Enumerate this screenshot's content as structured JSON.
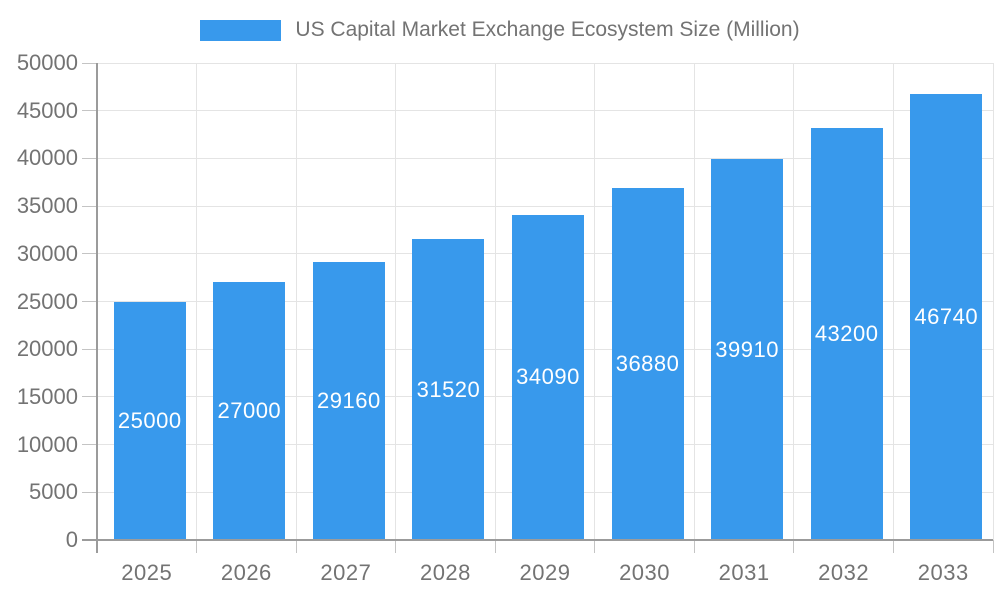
{
  "legend": {
    "label": "US Capital Market Exchange Ecosystem Size (Million)"
  },
  "colors": {
    "bar": "#3899EC",
    "axis": "#9B9B9B",
    "tick": "#C4C4C4",
    "grid": "#E4E4E4",
    "text": "#737373",
    "bar_label": "#FFFFFF",
    "background": "#FFFFFF"
  },
  "chart_data": {
    "type": "bar",
    "title": "US Capital Market Exchange Ecosystem Size (Million)",
    "categories": [
      "2025",
      "2026",
      "2027",
      "2028",
      "2029",
      "2030",
      "2031",
      "2032",
      "2033"
    ],
    "values": [
      25000,
      27000,
      29160,
      31520,
      34090,
      36880,
      39910,
      43200,
      46740
    ],
    "series": [
      {
        "name": "US Capital Market Exchange Ecosystem Size (Million)",
        "values": [
          25000,
          27000,
          29160,
          31520,
          34090,
          36880,
          39910,
          43200,
          46740
        ]
      }
    ],
    "xlabel": "",
    "ylabel": "",
    "ylim": [
      0,
      50000
    ],
    "y_ticks": [
      0,
      5000,
      10000,
      15000,
      20000,
      25000,
      30000,
      35000,
      40000,
      45000,
      50000
    ],
    "grid": true,
    "legend_position": "top",
    "bar_value_labels": "inside-center-white"
  }
}
